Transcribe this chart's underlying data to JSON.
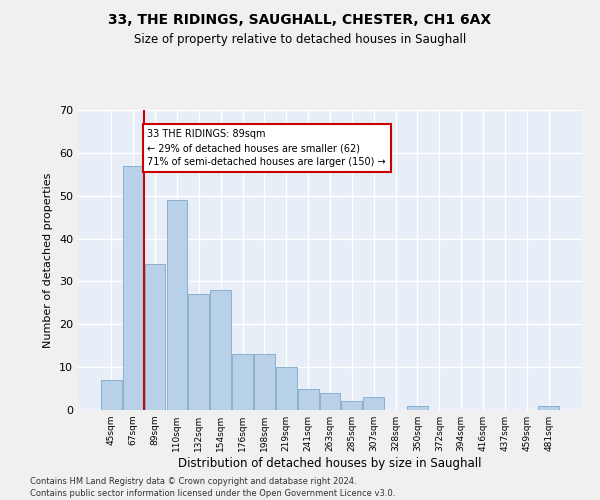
{
  "title_line1": "33, THE RIDINGS, SAUGHALL, CHESTER, CH1 6AX",
  "title_line2": "Size of property relative to detached houses in Saughall",
  "xlabel": "Distribution of detached houses by size in Saughall",
  "ylabel": "Number of detached properties",
  "categories": [
    "45sqm",
    "67sqm",
    "89sqm",
    "110sqm",
    "132sqm",
    "154sqm",
    "176sqm",
    "198sqm",
    "219sqm",
    "241sqm",
    "263sqm",
    "285sqm",
    "307sqm",
    "328sqm",
    "350sqm",
    "372sqm",
    "394sqm",
    "416sqm",
    "437sqm",
    "459sqm",
    "481sqm"
  ],
  "values": [
    7,
    57,
    34,
    49,
    27,
    28,
    13,
    13,
    10,
    5,
    4,
    2,
    3,
    0,
    1,
    0,
    0,
    0,
    0,
    0,
    1
  ],
  "bar_color": "#b8d0e8",
  "bar_edge_color": "#8ab0d0",
  "vline_color": "#cc0000",
  "annotation_text": "33 THE RIDINGS: 89sqm\n← 29% of detached houses are smaller (62)\n71% of semi-detached houses are larger (150) →",
  "annotation_box_color": "#ffffff",
  "annotation_box_edge": "#cc0000",
  "ylim": [
    0,
    70
  ],
  "yticks": [
    0,
    10,
    20,
    30,
    40,
    50,
    60,
    70
  ],
  "bg_color": "#e8eef8",
  "grid_color": "#ffffff",
  "fig_bg_color": "#f0f0f0",
  "footer_line1": "Contains HM Land Registry data © Crown copyright and database right 2024.",
  "footer_line2": "Contains public sector information licensed under the Open Government Licence v3.0."
}
